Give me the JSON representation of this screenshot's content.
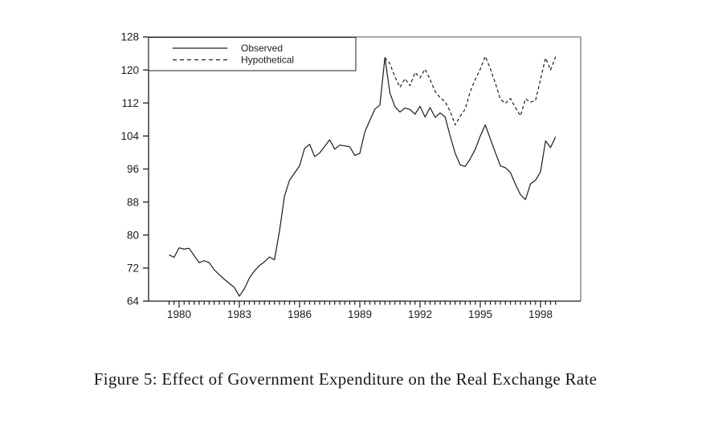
{
  "figure": {
    "caption": "Figure 5: Effect of Government Expenditure on the Real Exchange Rate"
  },
  "legend": {
    "entries": [
      {
        "label": "Observed",
        "style": "solid"
      },
      {
        "label": "Hypothetical",
        "style": "dashed"
      }
    ]
  },
  "colors": {
    "line": "#1c1c1c",
    "axis": "#1c1c1c",
    "frame_gray": "#a8a8a8",
    "background": "#ffffff"
  },
  "chart_data": {
    "type": "line",
    "title": "",
    "xlabel": "",
    "ylabel": "",
    "xlim": [
      1978.48,
      2000.0
    ],
    "ylim": [
      64,
      128
    ],
    "grid": false,
    "legend_position": "top-left",
    "y_ticks": [
      64,
      72,
      80,
      88,
      96,
      104,
      112,
      120,
      128
    ],
    "x_label_years": [
      1980,
      1983,
      1986,
      1989,
      1992,
      1995,
      1998
    ],
    "minor_tick_start": 1979.5,
    "minor_tick_end": 1998.75,
    "minor_tick_step": 0.25,
    "x_step": 0.25,
    "series": [
      {
        "name": "Observed",
        "style": "solid",
        "x_start": 1979.5,
        "values": [
          75.2,
          74.6,
          76.9,
          76.6,
          76.8,
          75.0,
          73.3,
          73.8,
          73.3,
          71.6,
          70.4,
          69.3,
          68.3,
          67.3,
          65.2,
          67.0,
          69.6,
          71.3,
          72.6,
          73.5,
          74.7,
          74.0,
          81.0,
          89.5,
          93.3,
          95.0,
          96.8,
          101.0,
          102.0,
          99.0,
          99.9,
          101.5,
          103.1,
          100.8,
          101.8,
          101.6,
          101.4,
          99.3,
          99.8,
          105.0,
          107.8,
          110.5,
          111.5,
          123.0,
          114.4,
          111.1,
          109.8,
          110.8,
          110.4,
          109.3,
          111.2,
          108.6,
          110.9,
          108.5,
          109.6,
          108.6,
          104.0,
          99.8,
          97.0,
          96.6,
          98.5,
          100.8,
          104.0,
          106.7,
          103.3,
          100.0,
          96.8,
          96.3,
          95.2,
          92.3,
          89.8,
          88.6,
          92.4,
          93.3,
          95.3,
          102.8,
          101.2,
          103.8
        ]
      },
      {
        "name": "Hypothetical",
        "style": "dashed",
        "x_start": 1990.25,
        "values": [
          123.0,
          121.5,
          118.3,
          115.8,
          117.9,
          116.2,
          119.4,
          118.1,
          120.2,
          117.7,
          114.8,
          113.3,
          112.3,
          110.0,
          106.7,
          108.8,
          110.5,
          114.8,
          117.7,
          120.2,
          123.3,
          120.3,
          116.8,
          112.9,
          111.9,
          113.1,
          110.9,
          108.9,
          113.0,
          112.2,
          112.6,
          117.7,
          122.9,
          120.0,
          123.2
        ]
      }
    ]
  }
}
